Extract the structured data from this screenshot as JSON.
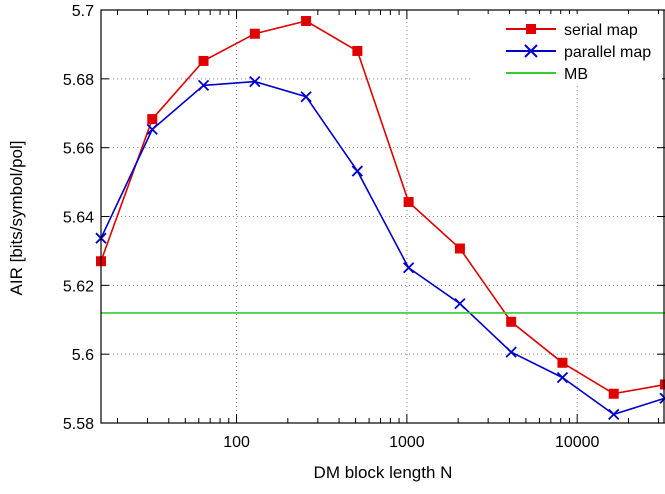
{
  "chart_data": {
    "type": "line",
    "xlabel": "DM block length N",
    "ylabel": "AIR  [bits/symbol/pol]",
    "xscale": "log",
    "xlim": [
      16,
      32768
    ],
    "ylim": [
      5.58,
      5.7
    ],
    "grid": true,
    "legend_position": "top-right",
    "x_ticks": [
      {
        "value": 100,
        "label": "100"
      },
      {
        "value": 1000,
        "label": "1000"
      },
      {
        "value": 10000,
        "label": "10000"
      }
    ],
    "y_ticks": [
      {
        "value": 5.58,
        "label": "5.58"
      },
      {
        "value": 5.6,
        "label": "5.6"
      },
      {
        "value": 5.62,
        "label": "5.62"
      },
      {
        "value": 5.64,
        "label": "5.64"
      },
      {
        "value": 5.66,
        "label": "5.66"
      },
      {
        "value": 5.68,
        "label": "5.68"
      },
      {
        "value": 5.7,
        "label": "5.7"
      }
    ],
    "series": [
      {
        "name": "serial map",
        "color": "#e00000",
        "marker": "square",
        "x": [
          16,
          32,
          64,
          128,
          256,
          512,
          1024,
          2048,
          4096,
          8192,
          16384,
          32768
        ],
        "y": [
          5.627,
          5.6683,
          5.6852,
          5.6931,
          5.6968,
          5.6881,
          5.6442,
          5.6307,
          5.6094,
          5.5975,
          5.5885,
          5.5912
        ]
      },
      {
        "name": "parallel map",
        "color": "#0000cc",
        "marker": "x",
        "x": [
          16,
          32,
          64,
          128,
          256,
          512,
          1024,
          2048,
          4096,
          8192,
          16384,
          32768
        ],
        "y": [
          5.6337,
          5.6653,
          5.6781,
          5.6792,
          5.6748,
          5.6532,
          5.6251,
          5.6147,
          5.6006,
          5.5932,
          5.5825,
          5.5872
        ]
      },
      {
        "name": "MB",
        "color": "#33cc33",
        "marker": "none",
        "x": [
          16,
          32768
        ],
        "y": [
          5.612,
          5.612
        ]
      }
    ]
  }
}
